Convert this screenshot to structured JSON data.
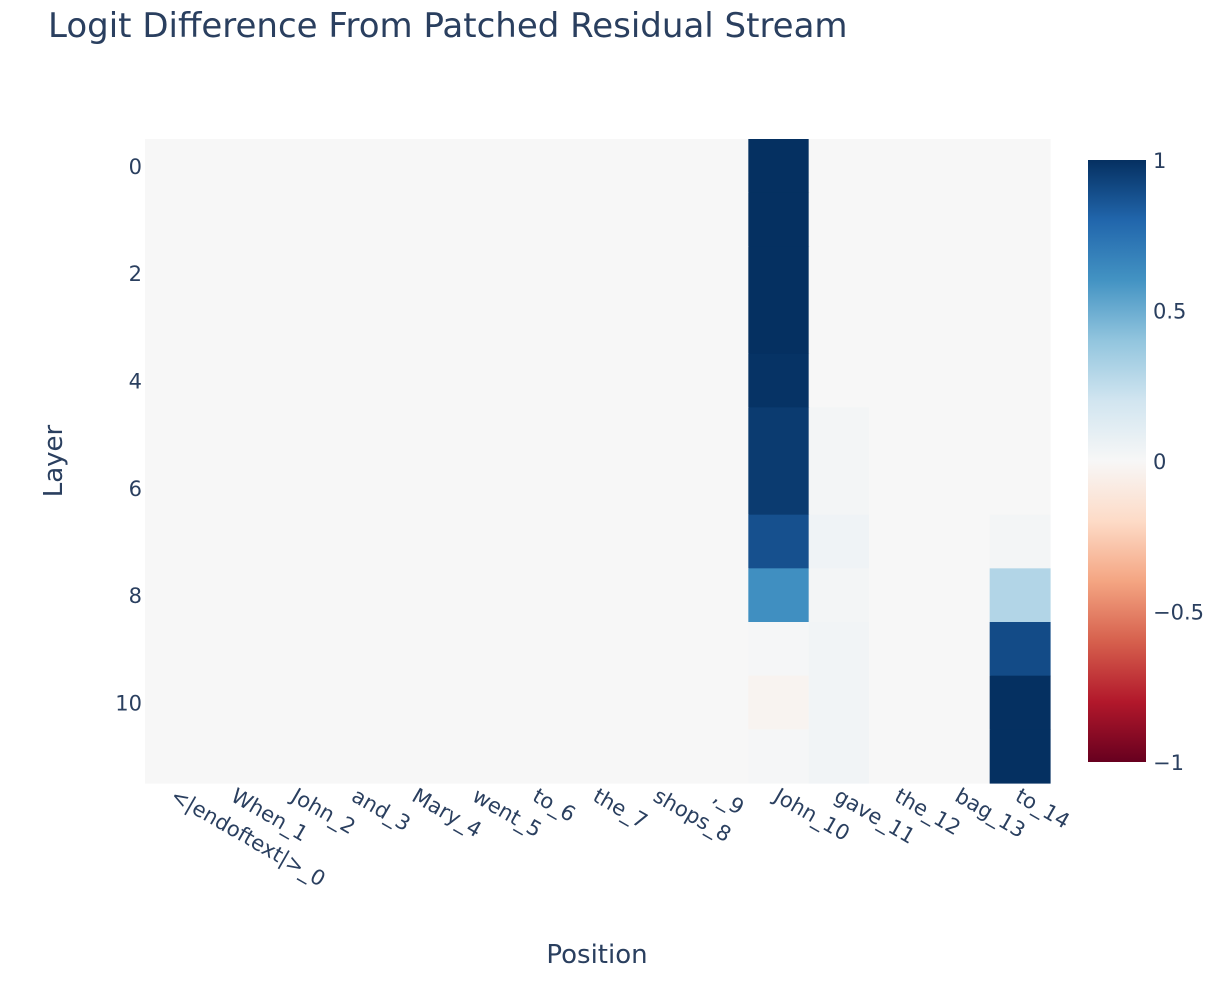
{
  "chart_data": {
    "type": "heatmap",
    "title": "Logit Difference From Patched Residual Stream",
    "xlabel": "Position",
    "ylabel": "Layer",
    "x_categories": [
      "<|endoftext|>_0",
      "When_1",
      "John_2",
      "and_3",
      "Mary_4",
      "went_5",
      "to_6",
      "the_7",
      "shops_8",
      ",_9",
      "John_10",
      "gave_11",
      "the_12",
      "bag_13",
      "to_14"
    ],
    "y_categories": [
      0,
      1,
      2,
      3,
      4,
      5,
      6,
      7,
      8,
      9,
      10,
      11
    ],
    "y_tick_labels": [
      "0",
      "2",
      "4",
      "6",
      "8",
      "10"
    ],
    "y_tick_values": [
      0,
      2,
      4,
      6,
      8,
      10
    ],
    "colorscale": "RdBu",
    "zmin": -1,
    "zmax": 1,
    "colorbar_ticks": [
      1,
      0.5,
      0,
      -0.5,
      -1
    ],
    "colorbar_tick_labels": [
      "1",
      "0.5",
      "0",
      "−0.5",
      "−1"
    ],
    "z": [
      [
        0,
        0,
        0,
        0,
        0,
        0,
        0,
        0,
        0,
        0,
        1.0,
        0,
        0,
        0,
        0
      ],
      [
        0,
        0,
        0,
        0,
        0,
        0,
        0,
        0,
        0,
        0,
        1.0,
        0,
        0,
        0,
        0
      ],
      [
        0,
        0,
        0,
        0,
        0,
        0,
        0,
        0,
        0,
        0,
        1.0,
        0,
        0,
        0,
        0
      ],
      [
        0,
        0,
        0,
        0,
        0,
        0,
        0,
        0,
        0,
        0,
        1.0,
        0,
        0,
        0,
        0
      ],
      [
        0,
        0,
        0,
        0,
        0,
        0,
        0,
        0,
        0,
        0,
        0.99,
        0,
        0,
        0,
        0
      ],
      [
        0,
        0,
        0,
        0,
        0,
        0,
        0,
        0,
        0,
        0,
        0.96,
        0.02,
        0,
        0,
        0
      ],
      [
        0,
        0,
        0,
        0,
        0,
        0,
        0,
        0,
        0,
        0,
        0.96,
        0.02,
        0,
        0,
        0
      ],
      [
        0,
        0,
        0,
        0,
        0,
        0,
        0,
        0,
        0,
        0,
        0.88,
        0.04,
        0,
        0,
        0.02
      ],
      [
        0,
        0,
        0,
        0,
        0,
        0,
        0,
        0,
        0,
        0,
        0.62,
        0.02,
        0,
        0,
        0.3
      ],
      [
        0,
        0,
        0,
        0,
        0,
        0,
        0,
        0,
        0,
        0,
        0.01,
        0.03,
        0,
        0,
        0.9
      ],
      [
        0,
        0,
        0,
        0,
        0,
        0,
        0,
        0,
        0,
        0,
        -0.03,
        0.03,
        0,
        0,
        1.0
      ],
      [
        0,
        0,
        0,
        0,
        0,
        0,
        0,
        0,
        0,
        0,
        0.01,
        0.03,
        0,
        0,
        1.0
      ]
    ]
  }
}
